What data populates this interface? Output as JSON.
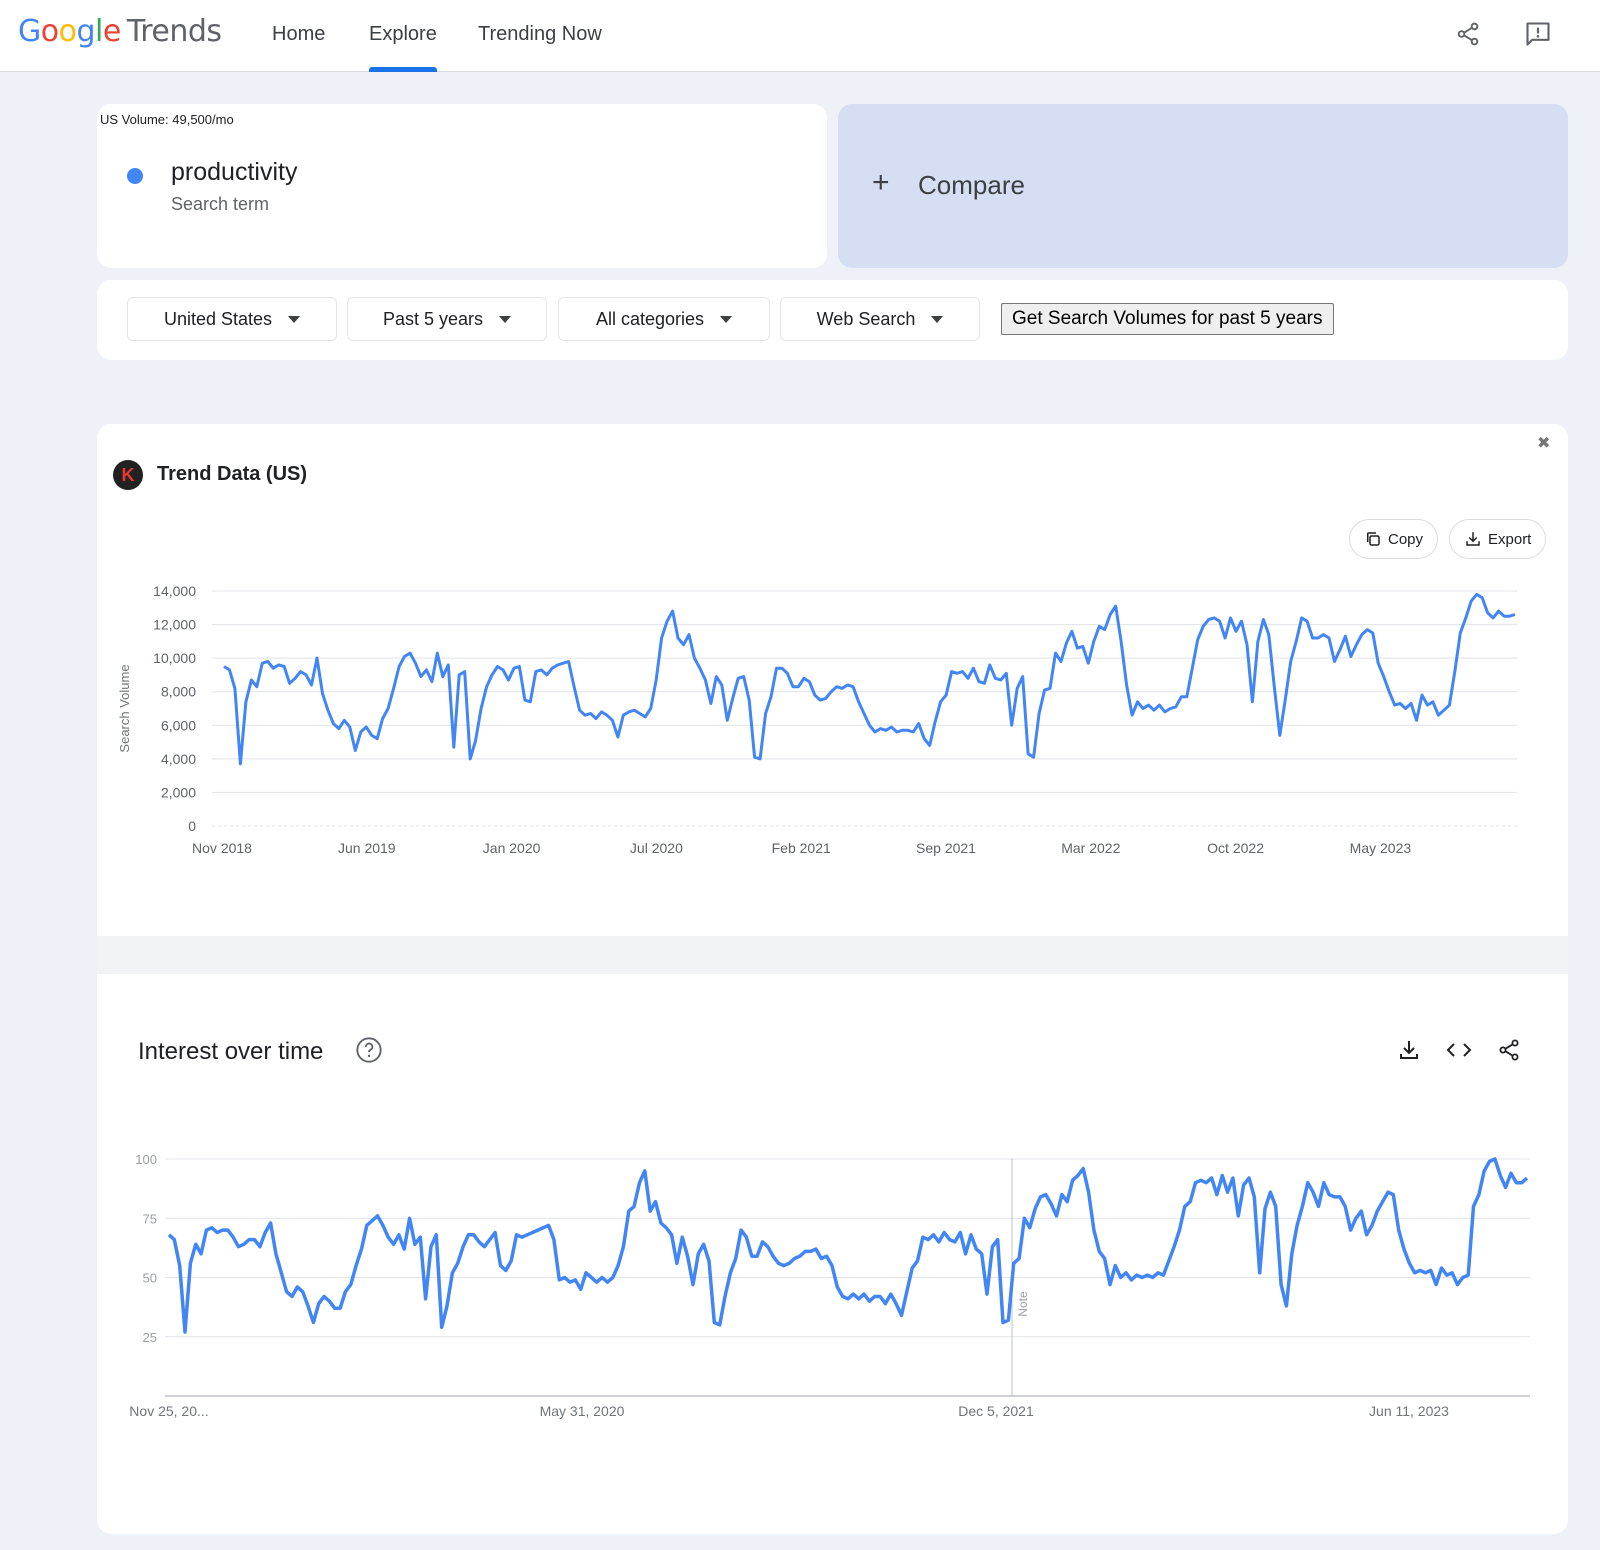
{
  "header": {
    "logo_google": "Google",
    "logo_trends": "Trends",
    "nav": [
      {
        "label": "Home"
      },
      {
        "label": "Explore"
      },
      {
        "label": "Trending Now"
      }
    ],
    "icons": [
      "share-icon",
      "feedback-icon"
    ]
  },
  "term": {
    "volume_note": "US Volume: 49,500/mo",
    "name": "productivity",
    "subtitle": "Search term",
    "dot_color": "#4285f4"
  },
  "compare": {
    "plus": "+",
    "label": "Compare"
  },
  "filters": {
    "region": "United States",
    "time": "Past 5 years",
    "category": "All categories",
    "search_type": "Web Search",
    "volume_button": "Get Search Volumes for past 5 years"
  },
  "trend_card": {
    "logo_letter": "K",
    "title": "Trend Data (US)",
    "close": "✖",
    "copy_label": "Copy",
    "export_label": "Export"
  },
  "interest_card": {
    "title": "Interest over time",
    "note_label": "Note"
  },
  "chart_data": [
    {
      "type": "line",
      "title": "",
      "ylabel": "Search Volume",
      "xlabel": "",
      "ylim": [
        0,
        14000
      ],
      "y_ticks": [
        "0",
        "2,000",
        "4,000",
        "6,000",
        "8,000",
        "10,000",
        "12,000",
        "14,000"
      ],
      "x_ticks": [
        "Nov 2018",
        "Jun 2019",
        "Jan 2020",
        "Jul 2020",
        "Feb 2021",
        "Sep 2021",
        "Mar 2022",
        "Oct 2022",
        "May 2023"
      ],
      "x_range": [
        "Nov 2018",
        "Nov 2023"
      ],
      "grid": true,
      "color": "#4285f4",
      "values": [
        9500,
        9300,
        8200,
        3700,
        7400,
        8700,
        8300,
        9700,
        9800,
        9400,
        9600,
        9500,
        8500,
        8800,
        9200,
        9000,
        8400,
        10000,
        7900,
        6900,
        6100,
        5800,
        6300,
        5900,
        4500,
        5600,
        5900,
        5400,
        5200,
        6400,
        7000,
        8200,
        9500,
        10100,
        10300,
        9700,
        8900,
        9300,
        8600,
        10300,
        8900,
        9600,
        4700,
        9000,
        9200,
        4000,
        5100,
        7000,
        8300,
        9000,
        9500,
        9300,
        8700,
        9400,
        9500,
        7500,
        7400,
        9200,
        9300,
        9000,
        9400,
        9600,
        9700,
        9800,
        8300,
        6900,
        6600,
        6700,
        6400,
        6800,
        6600,
        6300,
        5300,
        6600,
        6800,
        6900,
        6700,
        6500,
        7000,
        8700,
        11200,
        12200,
        12800,
        11200,
        10800,
        11400,
        10000,
        9400,
        8700,
        7300,
        8900,
        8400,
        6300,
        7600,
        8800,
        8900,
        7500,
        4100,
        4000,
        6700,
        7700,
        9400,
        9400,
        9100,
        8300,
        8300,
        8800,
        8600,
        7800,
        7500,
        7600,
        8000,
        8300,
        8200,
        8400,
        8300,
        7400,
        6700,
        6000,
        5600,
        5800,
        5700,
        5900,
        5600,
        5700,
        5700,
        5600,
        6100,
        5200,
        4800,
        6200,
        7400,
        7800,
        9200,
        9100,
        9200,
        8800,
        9400,
        8600,
        8500,
        9600,
        8800,
        8700,
        9100,
        6000,
        8200,
        8900,
        4300,
        4100,
        6700,
        8100,
        8200,
        10300,
        9800,
        10900,
        11600,
        10600,
        10700,
        9700,
        11000,
        11900,
        11700,
        12600,
        13100,
        11000,
        8400,
        6600,
        7400,
        7000,
        7200,
        6900,
        7200,
        6800,
        7000,
        7100,
        7700,
        7700,
        9400,
        11100,
        11900,
        12300,
        12400,
        12200,
        11200,
        12400,
        11600,
        12200,
        10800,
        7400,
        11000,
        12300,
        11400,
        8300,
        5400,
        7500,
        9800,
        11000,
        12400,
        12200,
        11200,
        11200,
        11400,
        11200,
        9800,
        10500,
        11300,
        10100,
        10800,
        11400,
        11700,
        11500,
        9700,
        8900,
        8000,
        7200,
        7300,
        7000,
        7300,
        6300,
        7800,
        7200,
        7400,
        6600,
        6900,
        7200,
        9200,
        11500,
        12400,
        13400,
        13800,
        13600,
        12700,
        12400,
        12800,
        12500,
        12500,
        12600
      ]
    },
    {
      "type": "line",
      "title": "",
      "xlabel": "",
      "ylabel": "",
      "ylim": [
        0,
        100
      ],
      "y_ticks": [
        "25",
        "50",
        "75",
        "100"
      ],
      "x_ticks": [
        "Nov 25, 20...",
        "May 31, 2020",
        "Dec 5, 2021",
        "Jun 11, 2023"
      ],
      "grid": true,
      "annotation": "Note",
      "color": "#4285f4",
      "values": [
        68,
        66,
        55,
        27,
        56,
        64,
        60,
        70,
        71,
        69,
        70,
        70,
        67,
        63,
        64,
        66,
        66,
        63,
        69,
        73,
        60,
        52,
        44,
        42,
        46,
        44,
        38,
        31,
        39,
        42,
        40,
        37,
        37,
        44,
        47,
        55,
        62,
        72,
        74,
        76,
        72,
        67,
        64,
        68,
        62,
        75,
        64,
        67,
        41,
        63,
        68,
        29,
        38,
        52,
        56,
        63,
        68,
        68,
        65,
        63,
        66,
        69,
        55,
        53,
        57,
        68,
        67,
        68,
        69,
        70,
        71,
        72,
        66,
        49,
        50,
        48,
        49,
        45,
        52,
        50,
        48,
        50,
        48,
        50,
        55,
        63,
        78,
        80,
        90,
        95,
        78,
        82,
        73,
        71,
        68,
        56,
        67,
        59,
        47,
        60,
        64,
        57,
        31,
        30,
        42,
        52,
        58,
        70,
        67,
        59,
        59,
        65,
        63,
        59,
        56,
        55,
        56,
        58,
        59,
        61,
        61,
        62,
        58,
        59,
        55,
        46,
        42,
        41,
        43,
        41,
        43,
        40,
        42,
        42,
        39,
        43,
        39,
        34,
        44,
        54,
        57,
        67,
        66,
        68,
        65,
        69,
        66,
        65,
        69,
        60,
        68,
        62,
        60,
        43,
        63,
        66,
        31,
        32,
        56,
        58,
        75,
        71,
        79,
        84,
        85,
        81,
        76,
        85,
        82,
        91,
        93,
        96,
        86,
        70,
        61,
        58,
        47,
        55,
        50,
        52,
        49,
        51,
        50,
        51,
        50,
        52,
        51,
        57,
        63,
        70,
        80,
        82,
        90,
        91,
        90,
        92,
        85,
        93,
        86,
        92,
        76,
        89,
        92,
        84,
        52,
        79,
        86,
        80,
        47,
        38,
        60,
        72,
        80,
        90,
        86,
        80,
        90,
        85,
        84,
        84,
        80,
        70,
        75,
        78,
        68,
        72,
        78,
        82,
        86,
        85,
        70,
        62,
        56,
        52,
        53,
        52,
        53,
        47,
        54,
        51,
        52,
        47,
        50,
        51,
        80,
        85,
        95,
        99,
        100,
        93,
        88,
        94,
        90,
        90,
        92
      ]
    }
  ]
}
